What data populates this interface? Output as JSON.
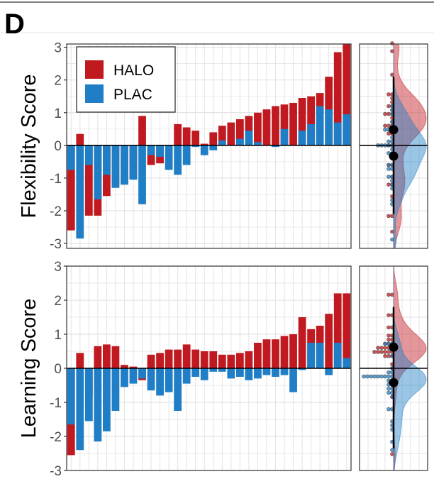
{
  "figure": {
    "panel_letter": "D"
  },
  "colors": {
    "HALO": "#c0191f",
    "PLAC": "#1f7ec6",
    "grid": "#e3e3e3",
    "axis": "#333333",
    "zero": "#000000"
  },
  "chart_data": [
    {
      "type": "bar",
      "ylabel": "Flexibility Score",
      "ylim": [
        -3.15,
        3.1
      ],
      "yticks": [
        "-3",
        "-2",
        "-1",
        "0",
        "1",
        "2",
        "3"
      ],
      "grid": true,
      "legend": {
        "position": "top-left",
        "entries": [
          "HALO",
          "PLAC"
        ]
      },
      "n_subjects": 32,
      "series": [
        {
          "name": "HALO",
          "values": [
            -2.6,
            0.35,
            -2.15,
            -2.15,
            -1.55,
            -1.25,
            -1.2,
            -1.0,
            0.9,
            -0.6,
            -0.55,
            0.0,
            0.65,
            0.55,
            0.45,
            0.05,
            0.4,
            0.6,
            0.7,
            0.8,
            0.9,
            1.0,
            1.1,
            1.2,
            1.25,
            1.3,
            1.45,
            1.5,
            1.6,
            2.1,
            2.85,
            3.1
          ]
        },
        {
          "name": "PLAC",
          "values": [
            -0.75,
            -2.85,
            -0.6,
            -1.65,
            -0.9,
            -1.3,
            -1.2,
            -1.05,
            -1.8,
            -0.3,
            -0.35,
            -0.75,
            -0.9,
            -0.6,
            -0.05,
            -0.3,
            -0.15,
            0.15,
            0.0,
            0.2,
            0.45,
            0.1,
            0.0,
            -0.05,
            0.5,
            0.0,
            0.45,
            0.65,
            1.2,
            1.1,
            0.7,
            0.95
          ]
        }
      ],
      "distribution": {
        "type": "half-violin",
        "y_range": [
          -3.15,
          3.1
        ],
        "HALO": {
          "mean": 0.48,
          "ci": [
            -2.1,
            2.1
          ],
          "density_peak": 0.85
        },
        "PLAC": {
          "mean": -0.33,
          "ci": [
            -2.1,
            2.1
          ],
          "density_peak": -0.3
        }
      }
    },
    {
      "type": "bar",
      "ylabel": "Learning Score",
      "ylim": [
        -3.0,
        3.0
      ],
      "yticks": [
        "-3",
        "-2",
        "-1",
        "0",
        "1",
        "2",
        "3"
      ],
      "grid": true,
      "n_subjects": 32,
      "series": [
        {
          "name": "HALO",
          "values": [
            -2.55,
            0.45,
            -0.85,
            0.65,
            0.7,
            0.65,
            0.1,
            0.05,
            -0.35,
            0.4,
            0.45,
            0.55,
            0.55,
            0.7,
            0.55,
            0.5,
            0.5,
            0.4,
            0.4,
            0.45,
            0.5,
            0.75,
            0.85,
            0.85,
            0.95,
            1.0,
            1.5,
            1.15,
            1.25,
            1.6,
            2.2,
            2.2
          ]
        },
        {
          "name": "PLAC",
          "values": [
            -1.65,
            -2.4,
            -1.55,
            -2.15,
            -1.85,
            -1.25,
            -0.55,
            -0.45,
            -0.3,
            -0.65,
            -0.8,
            -0.7,
            -1.25,
            -0.45,
            -0.25,
            -0.35,
            -0.1,
            -0.1,
            -0.3,
            -0.25,
            -0.35,
            -0.3,
            -0.2,
            -0.25,
            -0.2,
            -0.7,
            -0.05,
            0.75,
            0.75,
            -0.2,
            0.75,
            0.3
          ]
        }
      ],
      "distribution": {
        "type": "half-violin",
        "y_range": [
          -3.0,
          3.0
        ],
        "HALO": {
          "mean": 0.62,
          "ci": [
            -2.35,
            1.8
          ],
          "density_peak": 0.6
        },
        "PLAC": {
          "mean": -0.42,
          "ci": [
            -2.35,
            1.8
          ],
          "density_peak": -0.4
        }
      }
    }
  ]
}
